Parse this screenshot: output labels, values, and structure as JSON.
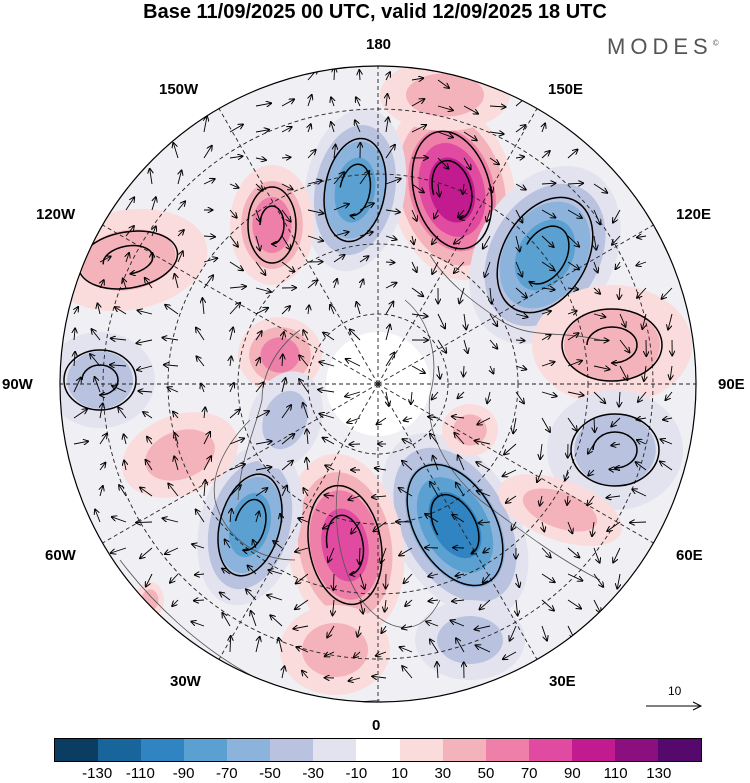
{
  "title": "Base 11/09/2025 00 UTC, valid 12/09/2025 18 UTC",
  "brand": "MODES",
  "brand_mark": "©",
  "map": {
    "projection": "north-polar-stereographic",
    "longitude_labels": {
      "lon_180": "180",
      "lon_150e": "150E",
      "lon_120e": "120E",
      "lon_90e": "90E",
      "lon_60e": "60E",
      "lon_30e": "30E",
      "lon_0": "0",
      "lon_30w": "30W",
      "lon_60w": "60W",
      "lon_90w": "90W",
      "lon_120w": "120W",
      "lon_150w": "150W"
    }
  },
  "colorbar": {
    "colors": [
      "#0b3d62",
      "#17659a",
      "#2f84c1",
      "#5aa0d0",
      "#8cb3dc",
      "#b9c3df",
      "#e3e3ef",
      "#ffffff",
      "#fbdcdc",
      "#f4b2bb",
      "#ee7fa8",
      "#e04aa0",
      "#c21a8f",
      "#8c0f80",
      "#56096d"
    ],
    "ticks": [
      "-130",
      "-110",
      "-90",
      "-70",
      "-50",
      "-30",
      "-10",
      "10",
      "30",
      "50",
      "70",
      "90",
      "110",
      "130"
    ]
  },
  "reference_vector": {
    "label": "10"
  }
}
